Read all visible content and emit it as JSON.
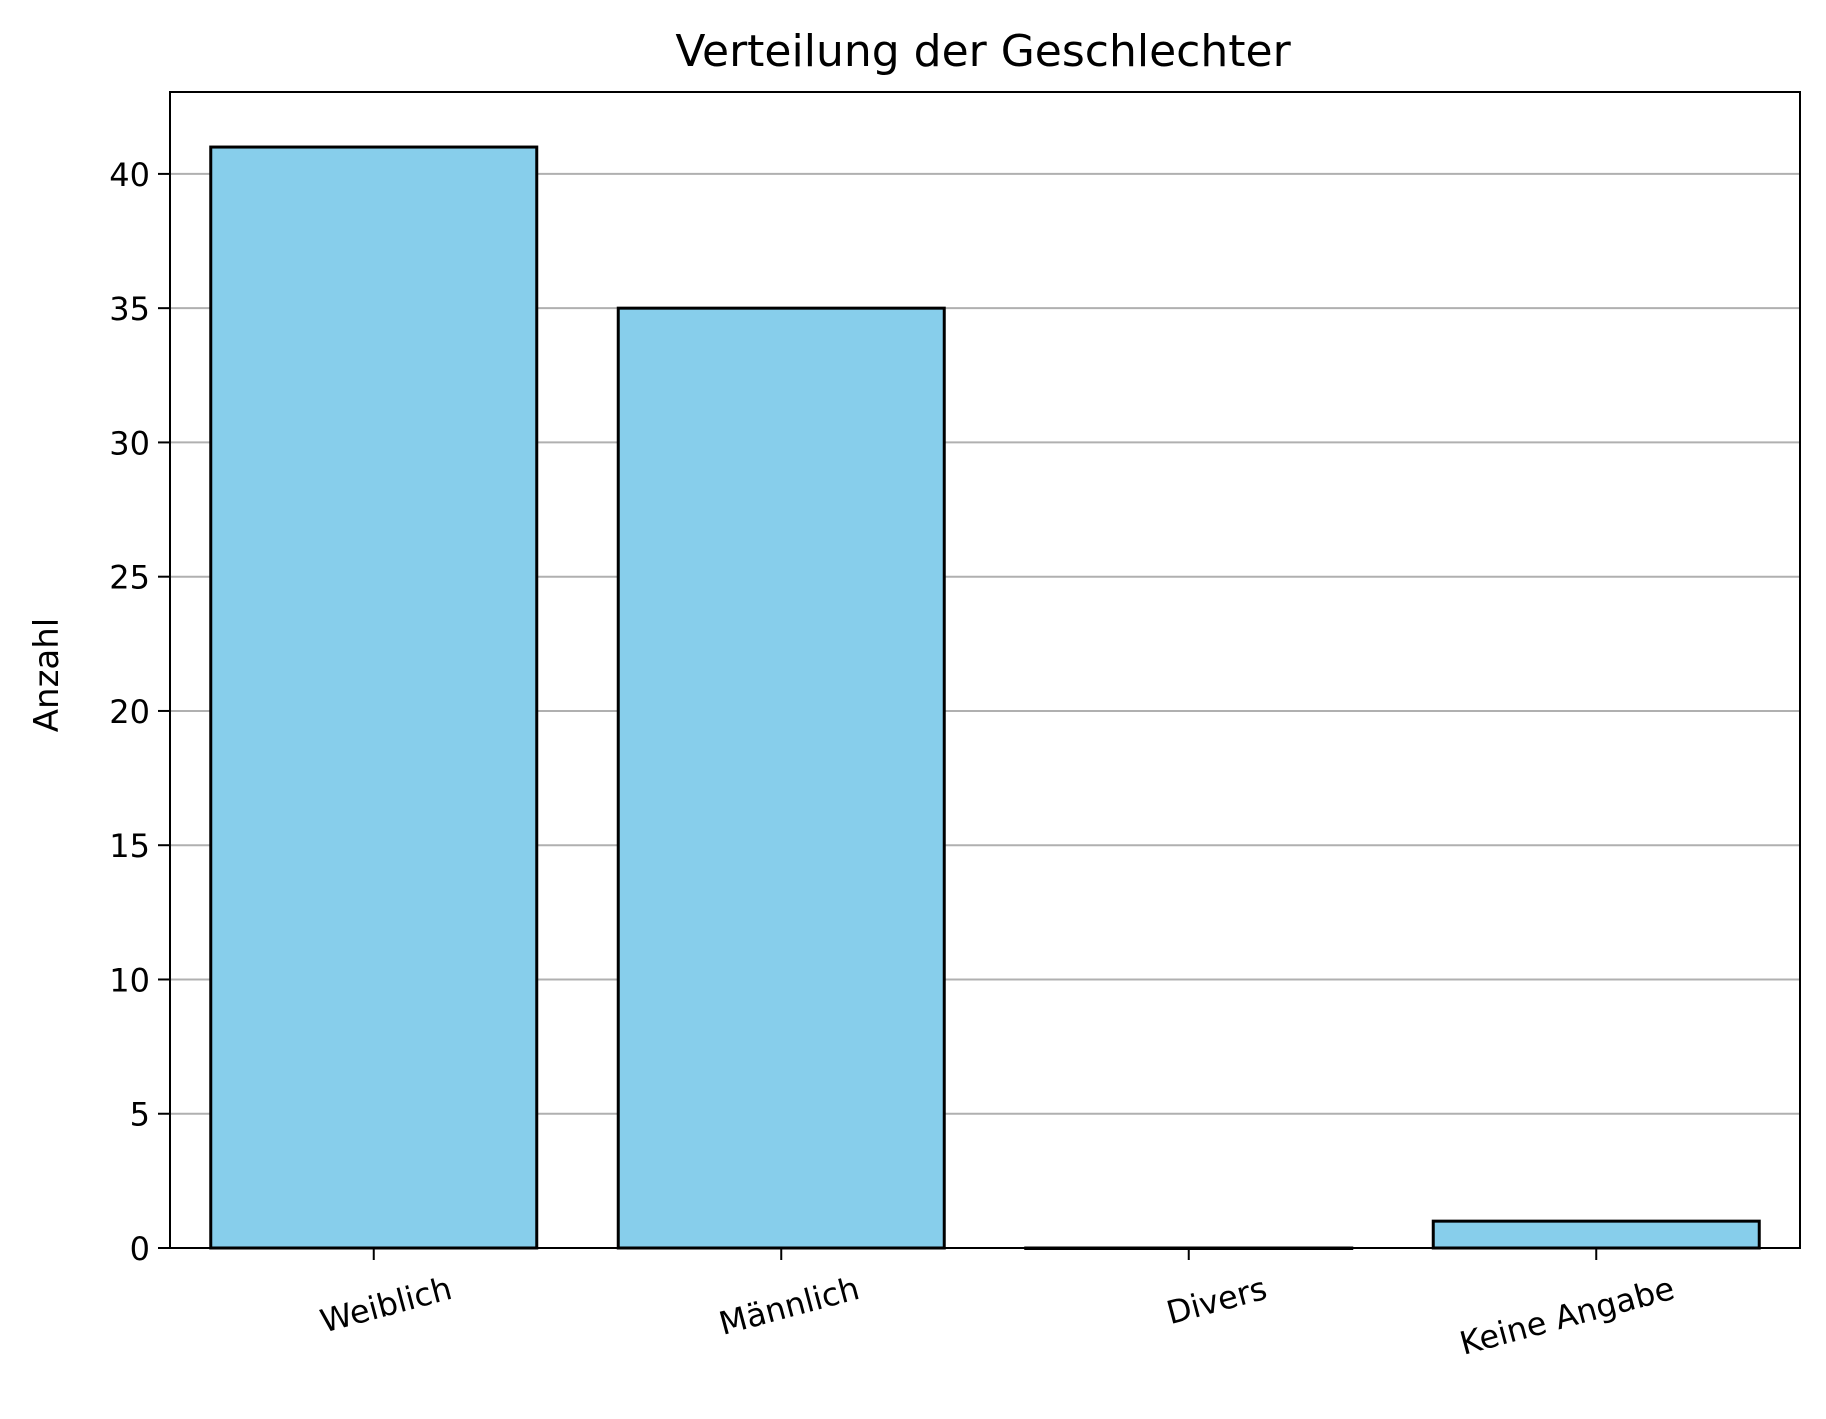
{
  "chart_data": {
    "type": "bar",
    "title": "Verteilung der Geschlechter",
    "xlabel": "",
    "ylabel": "Anzahl",
    "categories": [
      "Weiblich",
      "Männlich",
      "Divers",
      "Keine Angabe"
    ],
    "values": [
      41,
      35,
      0,
      1
    ],
    "ylim": [
      0,
      43.05
    ],
    "yticks": [
      0,
      5,
      10,
      15,
      20,
      25,
      30,
      35,
      40
    ],
    "xtick_rotation_deg": 15,
    "grid": "y-axis",
    "legend": "none",
    "colors": {
      "bar_fill": "#87CEEB",
      "bar_edge": "#000000",
      "grid": "#b0b0b0"
    }
  }
}
